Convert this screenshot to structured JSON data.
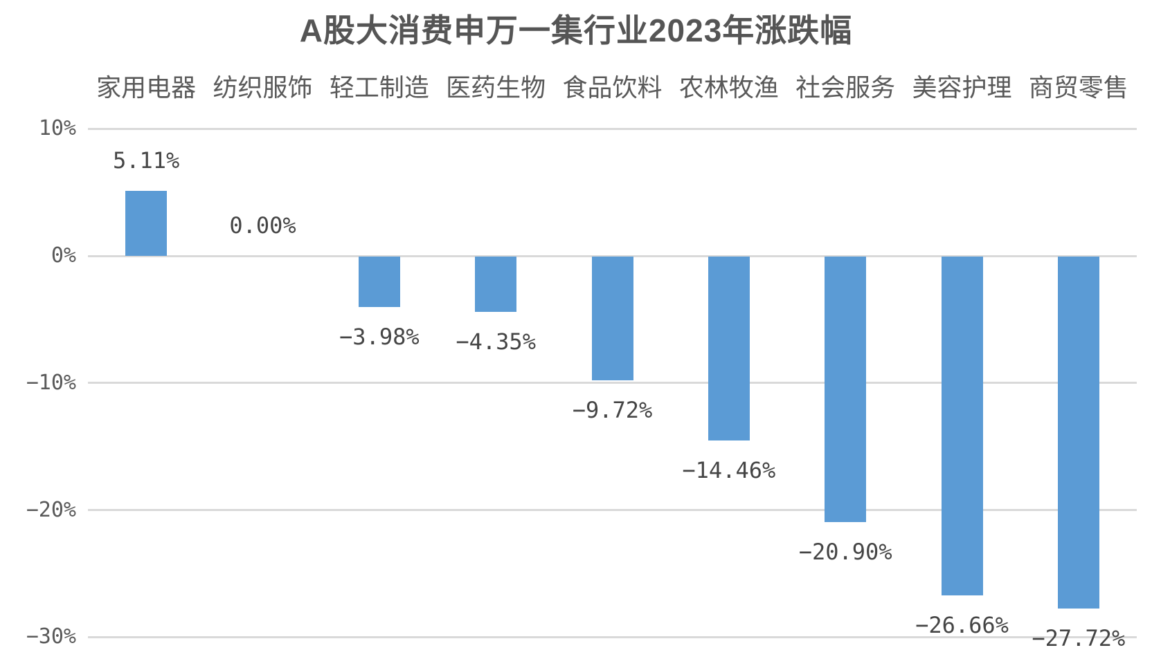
{
  "page": {
    "background": "#ffffff"
  },
  "header": {
    "title": "A股大消费申万一集行业2023年涨跌幅"
  },
  "chart_data": {
    "type": "bar",
    "title": "A股大消费申万一集行业2023年涨跌幅",
    "categories": [
      "家用电器",
      "纺织服饰",
      "轻工制造",
      "医药生物",
      "食品饮料",
      "农林牧渔",
      "社会服务",
      "美容护理",
      "商贸零售"
    ],
    "values": [
      5.11,
      0.0,
      -3.98,
      -4.35,
      -9.72,
      -14.46,
      -20.9,
      -26.66,
      -27.72
    ],
    "value_labels": [
      "5.11%",
      "0.00%",
      "−3.98%",
      "−4.35%",
      "−9.72%",
      "−14.46%",
      "−20.90%",
      "−26.66%",
      "−27.72%"
    ],
    "xlabel": "",
    "ylabel": "",
    "y_axis": {
      "range": [
        -30,
        10
      ],
      "ticks": [
        {
          "v": 10,
          "label": "10%"
        },
        {
          "v": 0,
          "label": "0%"
        },
        {
          "v": -10,
          "label": "−10%"
        },
        {
          "v": -20,
          "label": "−20%"
        },
        {
          "v": -30,
          "label": "−30%"
        }
      ]
    },
    "grid": true,
    "legend": "none",
    "colors": {
      "bar": "#5B9BD5",
      "grid": "#D9D9D9",
      "axis_text": "#595959",
      "category_text": "#595959",
      "value_label_text": "#454545",
      "title_text": "#555555"
    }
  }
}
